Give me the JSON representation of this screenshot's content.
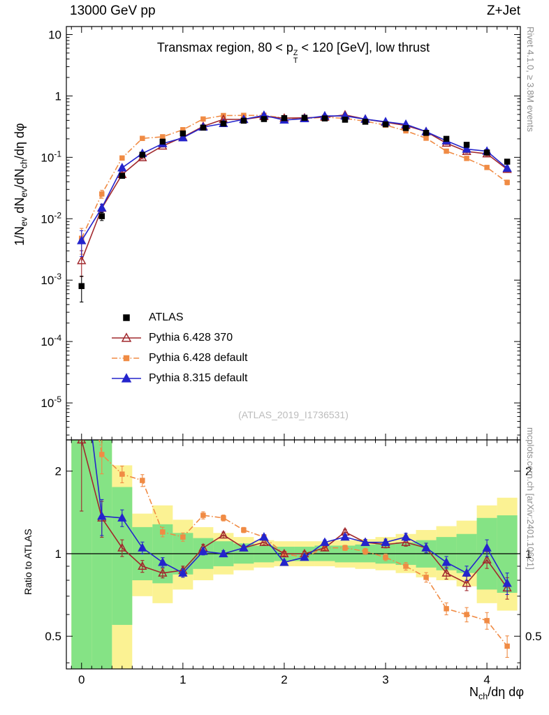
{
  "header": {
    "left": "13000 GeV pp",
    "right": "Z+Jet"
  },
  "panel_title_rich": [
    {
      "t": "Transmax region, 80 < p"
    },
    {
      "stk": [
        "Z",
        "T"
      ]
    },
    {
      "t": " < 120 [GeV], low thrust"
    }
  ],
  "ylabel_main_rich": [
    {
      "t": "1/N"
    },
    {
      "sub": "ev"
    },
    {
      "t": " dN"
    },
    {
      "sub": "ev"
    },
    {
      "t": "/dN"
    },
    {
      "sub": "ch"
    },
    {
      "t": "/dη dφ"
    }
  ],
  "ylabel_ratio": "Ratio to ATLAS",
  "xlabel_rich": [
    {
      "t": "N"
    },
    {
      "sub": "ch"
    },
    {
      "t": "/dη dφ"
    }
  ],
  "side_text_top": "Rivet 4.1.0, ≥ 3.8M events",
  "side_text_bottom": "mcplots.cern.ch [arXiv:2401.10621]",
  "watermark": "(ATLAS_2019_I1736531)",
  "chart_data": {
    "type": "line",
    "title": "Transmax region, 80 < pT^Z < 120 [GeV], low thrust",
    "xlabel": "N_ch/dη dφ",
    "ylabel": "1/N_ev dN_ev/dN_ch/dη dφ",
    "ratio_ylabel": "Ratio to ATLAS",
    "legend_position": "middle-left",
    "xlim": [
      -0.15,
      4.33
    ],
    "xticks": [
      0,
      1,
      2,
      3,
      4
    ],
    "xtick_minor_step": 0.1,
    "main": {
      "ylog": true,
      "ylim": [
        2.5e-06,
        13.5
      ],
      "yticks": [
        {
          "v": 10,
          "t": "10"
        },
        {
          "v": 1,
          "t": "1"
        },
        {
          "v": 0.1,
          "t": "10",
          "e": "-1"
        },
        {
          "v": 0.01,
          "t": "10",
          "e": "-2"
        },
        {
          "v": 0.001,
          "t": "10",
          "e": "-3"
        },
        {
          "v": 0.0001,
          "t": "10",
          "e": "-4"
        },
        {
          "v": 1e-05,
          "t": "10",
          "e": "-5"
        }
      ]
    },
    "ratio": {
      "ylog": true,
      "ylim": [
        0.38,
        2.6
      ],
      "yticks": [
        {
          "v": 0.5,
          "t": "0.5"
        },
        {
          "v": 1,
          "t": "1"
        },
        {
          "v": 2,
          "t": "2"
        }
      ],
      "yticks_minor": [
        0.4,
        0.6,
        0.7,
        0.8,
        0.9
      ]
    },
    "x": [
      0.0,
      0.2,
      0.4,
      0.6,
      0.8,
      1.0,
      1.2,
      1.4,
      1.6,
      1.8,
      2.0,
      2.2,
      2.4,
      2.6,
      2.8,
      3.0,
      3.2,
      3.4,
      3.6,
      3.8,
      4.0,
      4.2
    ],
    "err_frac": [
      0.45,
      0.15,
      0.07,
      0.05,
      0.04,
      0.035,
      0.03,
      0.025,
      0.022,
      0.02,
      0.02,
      0.02,
      0.02,
      0.022,
      0.025,
      0.028,
      0.032,
      0.04,
      0.05,
      0.06,
      0.07,
      0.09
    ],
    "series": [
      {
        "name": "ATLAS",
        "slug": "atlas",
        "color": "#000000",
        "marker": "square",
        "mfill": "filled",
        "msize": 7,
        "line": "none",
        "values": [
          0.0008,
          0.011,
          0.05,
          0.11,
          0.18,
          0.245,
          0.305,
          0.355,
          0.395,
          0.42,
          0.435,
          0.44,
          0.43,
          0.41,
          0.38,
          0.345,
          0.3,
          0.25,
          0.2,
          0.16,
          0.12,
          0.085
        ]
      },
      {
        "name": "Pythia 6.428 370",
        "slug": "pythia-6-428-370",
        "color": "#a1282d",
        "marker": "triangle",
        "mfill": "open",
        "msize": 9,
        "line": "solid",
        "ratio": [
          2.6,
          1.35,
          1.05,
          0.9,
          0.85,
          0.87,
          1.05,
          1.17,
          1.05,
          1.1,
          1.0,
          1.0,
          1.05,
          1.2,
          1.1,
          1.08,
          1.1,
          1.05,
          0.85,
          0.78,
          0.95,
          0.75
        ]
      },
      {
        "name": "Pythia 6.428 default",
        "slug": "pythia-6-428-default",
        "color": "#f08b44",
        "marker": "square",
        "mfill": "filled",
        "msize": 6,
        "line": "dashdot",
        "ratio": [
          6.0,
          2.3,
          1.95,
          1.85,
          1.2,
          1.15,
          1.38,
          1.35,
          1.22,
          1.15,
          1.0,
          0.97,
          1.05,
          1.05,
          1.02,
          0.97,
          0.9,
          0.82,
          0.63,
          0.6,
          0.57,
          0.46
        ]
      },
      {
        "name": "Pythia 8.315 default",
        "slug": "pythia-8-315-default",
        "color": "#2424cc",
        "marker": "triangle",
        "mfill": "filled",
        "msize": 9,
        "line": "solid",
        "ratio": [
          5.5,
          1.37,
          1.35,
          1.05,
          0.93,
          0.85,
          1.02,
          1.0,
          1.05,
          1.15,
          0.93,
          0.97,
          1.1,
          1.15,
          1.1,
          1.1,
          1.15,
          1.05,
          0.93,
          0.85,
          1.05,
          0.78
        ]
      }
    ],
    "bands": {
      "yellow": "#fbf293",
      "green": "#85e385",
      "bin_half_width": 0.1,
      "yellow_range": [
        [
          0.3,
          2.6
        ],
        [
          0.3,
          2.6
        ],
        [
          0.3,
          2.1
        ],
        [
          0.7,
          1.4
        ],
        [
          0.66,
          1.5
        ],
        [
          0.74,
          1.33
        ],
        [
          0.8,
          1.25
        ],
        [
          0.84,
          1.19
        ],
        [
          0.87,
          1.15
        ],
        [
          0.89,
          1.12
        ],
        [
          0.9,
          1.11
        ],
        [
          0.9,
          1.11
        ],
        [
          0.9,
          1.11
        ],
        [
          0.89,
          1.12
        ],
        [
          0.88,
          1.13
        ],
        [
          0.87,
          1.15
        ],
        [
          0.85,
          1.18
        ],
        [
          0.82,
          1.22
        ],
        [
          0.8,
          1.26
        ],
        [
          0.76,
          1.32
        ],
        [
          0.66,
          1.5
        ],
        [
          0.62,
          1.6
        ]
      ],
      "green_range": [
        [
          0.3,
          2.6
        ],
        [
          0.3,
          2.6
        ],
        [
          0.55,
          1.75
        ],
        [
          0.8,
          1.25
        ],
        [
          0.78,
          1.28
        ],
        [
          0.84,
          1.19
        ],
        [
          0.88,
          1.14
        ],
        [
          0.9,
          1.11
        ],
        [
          0.92,
          1.09
        ],
        [
          0.93,
          1.07
        ],
        [
          0.94,
          1.06
        ],
        [
          0.94,
          1.06
        ],
        [
          0.94,
          1.07
        ],
        [
          0.93,
          1.07
        ],
        [
          0.93,
          1.08
        ],
        [
          0.92,
          1.09
        ],
        [
          0.91,
          1.1
        ],
        [
          0.89,
          1.12
        ],
        [
          0.87,
          1.15
        ],
        [
          0.85,
          1.18
        ],
        [
          0.74,
          1.35
        ],
        [
          0.72,
          1.38
        ]
      ]
    }
  }
}
